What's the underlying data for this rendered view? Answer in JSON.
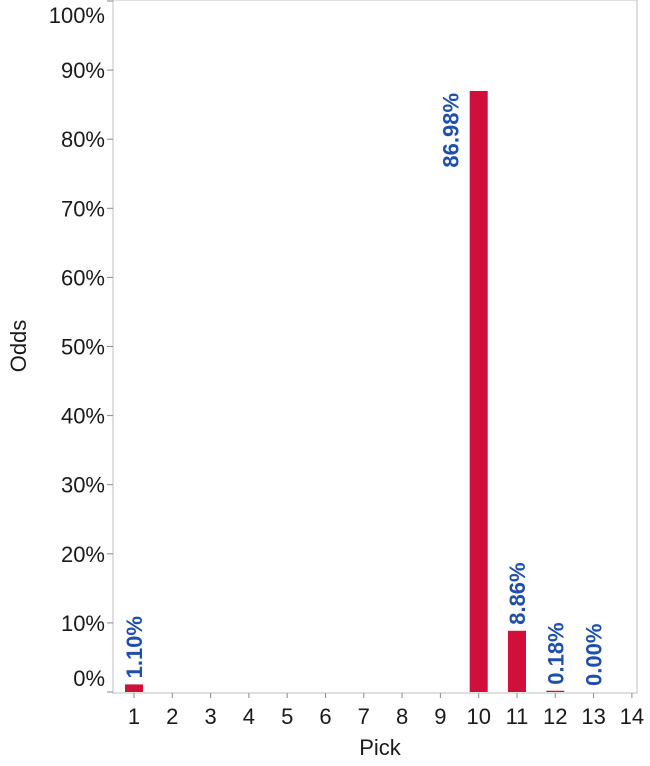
{
  "chart_data": {
    "type": "bar",
    "title": "",
    "xlabel": "Pick",
    "ylabel": "Odds",
    "categories": [
      "1",
      "2",
      "3",
      "4",
      "5",
      "6",
      "7",
      "8",
      "9",
      "10",
      "11",
      "12",
      "13",
      "14"
    ],
    "values": [
      1.1,
      0,
      0,
      0,
      0,
      0,
      0,
      0,
      0,
      86.98,
      8.86,
      0.18,
      0.0,
      0
    ],
    "data_labels": [
      "1.10%",
      "",
      "",
      "",
      "",
      "",
      "",
      "",
      "",
      "86.98%",
      "8.86%",
      "0.18%",
      "0.00%",
      ""
    ],
    "y_ticks": [
      "0%",
      "10%",
      "20%",
      "30%",
      "40%",
      "50%",
      "60%",
      "70%",
      "80%",
      "90%",
      "100%"
    ],
    "ylim": [
      0,
      100
    ],
    "grid": false,
    "legend": "none",
    "bar_color": "#d0103a",
    "label_color": "#1f4fa8"
  }
}
